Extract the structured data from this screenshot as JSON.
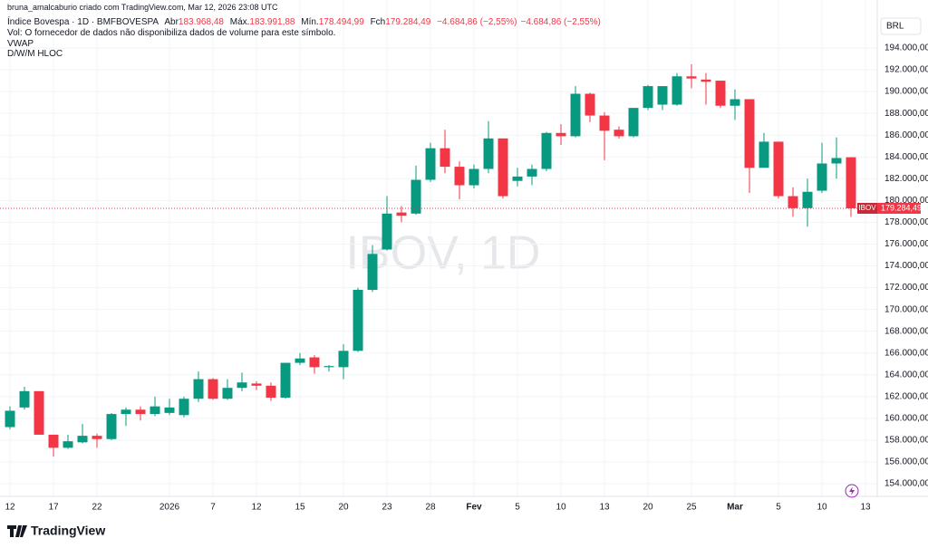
{
  "header": {
    "credit": "bruna_amalcaburio criado com TradingView.com, Mar 12, 2026 23:08 UTC",
    "symbol": "Índice Bovespa · 1D · BMFBOVESPA",
    "open_label": "Abr",
    "open": "183.968,48",
    "high_label": "Máx.",
    "high": "183.991,88",
    "low_label": "Mín.",
    "low": "178.494,99",
    "close_label": "Fch",
    "close": "179.284,49",
    "change": "−4.684,86 (−2,55%)",
    "change_2": "−4.684,86 (−2,55%)",
    "indicators": [
      "Vol: O fornecedor de dados não disponibiliza dados de volume para este símbolo.",
      "VWAP",
      "D/W/M HLOC"
    ]
  },
  "chart_data": {
    "type": "candlestick",
    "watermark": "IBOV, 1D",
    "currency": "BRL",
    "categories": [
      "12",
      null,
      null,
      "17",
      null,
      null,
      "22",
      null,
      null,
      null,
      null,
      "2026",
      null,
      null,
      "7",
      null,
      null,
      "12",
      null,
      null,
      "15",
      null,
      null,
      "20",
      null,
      null,
      "23",
      null,
      null,
      "28",
      null,
      null,
      "Fev",
      null,
      null,
      "5",
      null,
      null,
      "10",
      null,
      null,
      "13",
      null,
      null,
      "20",
      null,
      null,
      "25",
      null,
      null,
      "Mar",
      null,
      null,
      "5",
      null,
      null,
      "10",
      null,
      null,
      "13"
    ],
    "open": [
      159200,
      161000,
      162500,
      158500,
      157300,
      157800,
      158400,
      158100,
      160400,
      160800,
      160400,
      160500,
      160300,
      161800,
      163600,
      161800,
      162800,
      163200,
      163000,
      161900,
      165100,
      165600,
      164700,
      164700,
      166200,
      171800,
      175500,
      178900,
      178800,
      181900,
      184800,
      183100,
      181400,
      182900,
      185700,
      181800,
      182200,
      182900,
      186200,
      185900,
      189800,
      187800,
      186500,
      185900,
      188500,
      188800,
      188800,
      191400,
      191100,
      191000,
      188700,
      189300,
      183000,
      185400,
      180400,
      179300,
      180900,
      183400,
      183968.48,
      null
    ],
    "high": [
      161100,
      162900,
      162500,
      158500,
      158500,
      159500,
      158600,
      160500,
      161000,
      161100,
      162000,
      161800,
      162000,
      164300,
      163700,
      163600,
      164200,
      163400,
      163300,
      165100,
      166000,
      165800,
      164900,
      166800,
      172000,
      175900,
      180400,
      179500,
      183200,
      185300,
      186500,
      183600,
      183300,
      187300,
      185700,
      183000,
      183300,
      186300,
      187000,
      190500,
      189900,
      188100,
      186800,
      188500,
      190600,
      190500,
      191700,
      192500,
      191700,
      191000,
      190200,
      189300,
      186200,
      185400,
      181200,
      182000,
      185300,
      185800,
      183991.88,
      null
    ],
    "low": [
      159000,
      160800,
      158500,
      156500,
      157200,
      157700,
      157300,
      158000,
      159300,
      159800,
      160200,
      160300,
      160100,
      161500,
      161700,
      161700,
      162500,
      162600,
      161600,
      161800,
      164900,
      164100,
      164300,
      163600,
      166100,
      171600,
      175400,
      178000,
      178700,
      181700,
      182500,
      180100,
      181100,
      182500,
      180200,
      181300,
      181400,
      182700,
      185100,
      185800,
      187200,
      183700,
      185700,
      185800,
      188300,
      188300,
      188700,
      190300,
      188800,
      188500,
      187400,
      180700,
      183000,
      180200,
      178500,
      177600,
      180700,
      182000,
      178494.99,
      null
    ],
    "close": [
      160700,
      162500,
      158500,
      157300,
      157900,
      158400,
      158100,
      160400,
      160800,
      160400,
      161100,
      161000,
      161800,
      163600,
      161800,
      162800,
      163300,
      163000,
      161900,
      165100,
      165500,
      164700,
      164800,
      166200,
      171800,
      175100,
      178800,
      178600,
      181900,
      184800,
      183100,
      181400,
      182900,
      185700,
      180400,
      182200,
      182900,
      186200,
      185900,
      189800,
      187800,
      186400,
      185900,
      188500,
      190500,
      190500,
      191400,
      191200,
      190900,
      188700,
      189300,
      183000,
      185400,
      180400,
      179300,
      180800,
      183400,
      183900,
      179284.49,
      null
    ],
    "up_color": "#089981",
    "down_color": "#f23645",
    "ylim": [
      152840,
      196910
    ],
    "yticks": [
      {
        "value": 154000,
        "label": "154.000,00"
      },
      {
        "value": 156000,
        "label": "156.000,00"
      },
      {
        "value": 158000,
        "label": "158.000,00"
      },
      {
        "value": 160000,
        "label": "160.000,00"
      },
      {
        "value": 162000,
        "label": "162.000,00"
      },
      {
        "value": 164000,
        "label": "164.000,00"
      },
      {
        "value": 166000,
        "label": "166.000,00"
      },
      {
        "value": 168000,
        "label": "168.000,00"
      },
      {
        "value": 170000,
        "label": "170.000,00"
      },
      {
        "value": 172000,
        "label": "172.000,00"
      },
      {
        "value": 174000,
        "label": "174.000,00"
      },
      {
        "value": 176000,
        "label": "176.000,00"
      },
      {
        "value": 178000,
        "label": "178.000,00"
      },
      {
        "value": 180000,
        "label": "180.000,00"
      },
      {
        "value": 182000,
        "label": "182.000,00"
      },
      {
        "value": 184000,
        "label": "184.000,00"
      },
      {
        "value": 186000,
        "label": "186.000,00"
      },
      {
        "value": 188000,
        "label": "188.000,00"
      },
      {
        "value": 190000,
        "label": "190.000,00"
      },
      {
        "value": 192000,
        "label": "192.000,00"
      },
      {
        "value": 194000,
        "label": "194.000,00"
      }
    ],
    "grid": true,
    "last_price": {
      "name": "IBOV",
      "value": 179284.49,
      "label": "179.284,49"
    }
  },
  "footer": {
    "logo": "TradingView"
  }
}
